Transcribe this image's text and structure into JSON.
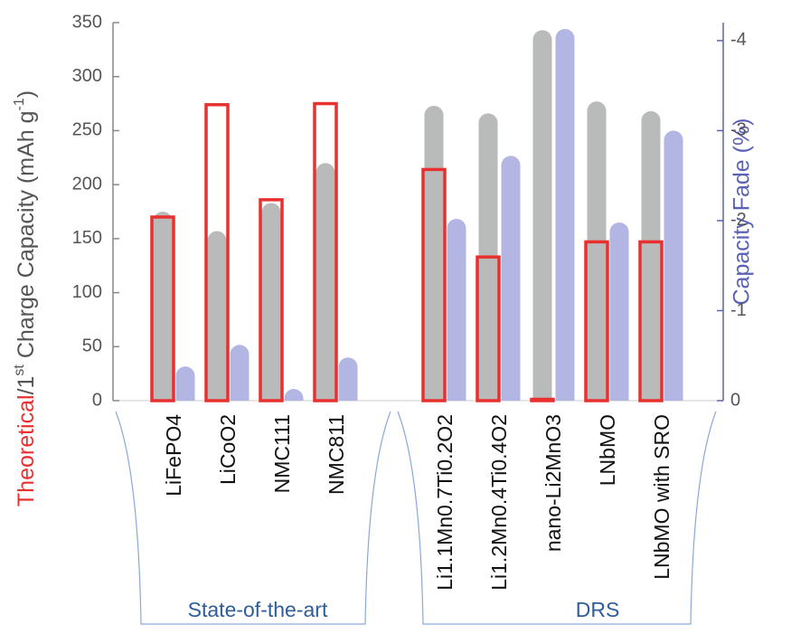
{
  "chart_data": {
    "type": "bar",
    "ylabel": [
      "Theoretical",
      "/1",
      "st",
      " Charge Capacity (mAh g",
      "-1",
      ")"
    ],
    "y2label": "Capacity Fade (%)",
    "categories": [
      "LiFePO4",
      "LiCoO2",
      "NMC111",
      "NMC811",
      null,
      "Li1.1Mn0.7Ti0.2O2",
      "Li1.2Mn0.4Ti0.4O2",
      "nano-Li2MnO3",
      "LNbMO",
      "LNbMO with SRO"
    ],
    "group_labels": [
      "State-of-the-art",
      "DRS"
    ],
    "series": [
      {
        "color": "#b9bbbb",
        "style": "filled",
        "values": [
          175,
          157,
          183,
          220,
          null,
          273,
          266,
          343,
          277,
          268
        ]
      },
      {
        "color": "#e8312f",
        "style": "outline",
        "values": [
          170,
          274,
          186,
          275,
          null,
          214,
          133,
          0,
          147,
          147
        ]
      },
      {
        "color": "#b3b5e3",
        "style": "filled",
        "axis": "y2",
        "values": [
          -0.38,
          -0.62,
          -0.13,
          -0.48,
          null,
          -2.02,
          -2.72,
          -4.13,
          -1.98,
          -3.0
        ]
      }
    ],
    "ylim": [
      0,
      350
    ],
    "yticks": [
      0,
      50,
      100,
      150,
      200,
      250,
      300,
      350
    ],
    "y2lim": [
      0,
      -4.2
    ],
    "y2ticks": [
      0,
      -1,
      -2,
      -3,
      -4
    ],
    "y2color": "#5b62b5"
  }
}
